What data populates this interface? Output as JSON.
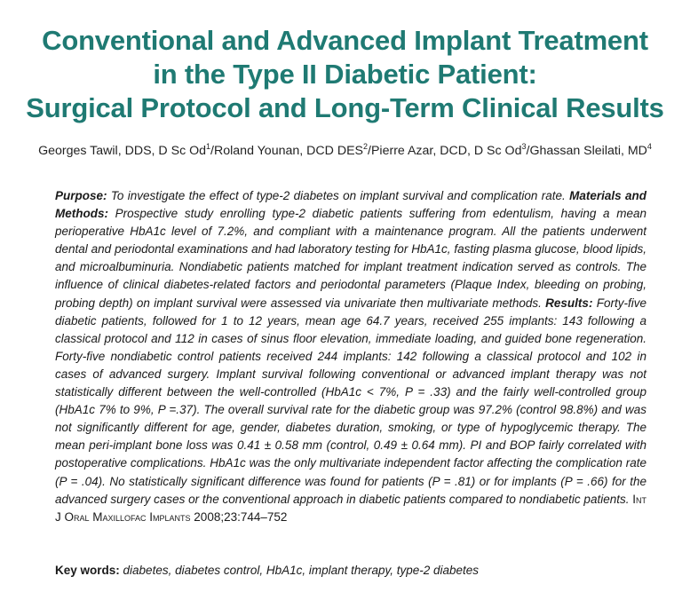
{
  "title": {
    "line1": "Conventional and Advanced Implant Treatment",
    "line2": "in the Type II Diabetic Patient:",
    "line3": "Surgical Protocol and Long-Term Clinical Results"
  },
  "authors": [
    {
      "name": "Georges Tawil, DDS, D Sc Od",
      "sup": "1",
      "sep": "/"
    },
    {
      "name": "Roland Younan, DCD DES",
      "sup": "2",
      "sep": "/"
    },
    {
      "name": "Pierre Azar, DCD, D Sc Od",
      "sup": "3",
      "sep": "/"
    },
    {
      "name": "Ghassan Sleilati, MD",
      "sup": "4",
      "sep": ""
    }
  ],
  "abstract": {
    "purpose_head": "Purpose:",
    "purpose_text": " To investigate the effect of type-2 diabetes on implant survival and complication rate. ",
    "methods_head": "Materials and Methods:",
    "methods_text": " Prospective study enrolling type-2 diabetic patients suffering from edentulism, having a mean perioperative HbA1c level of 7.2%, and compliant with a maintenance program. All the patients underwent dental and periodontal examinations and had laboratory testing for HbA1c, fasting plasma glucose, blood lipids, and microalbuminuria. Nondiabetic patients matched for implant treatment indication served as controls. The influence of clinical diabetes-related factors and periodontal parameters (Plaque Index, bleeding on probing, probing depth) on implant survival were assessed via univariate then multivariate methods. ",
    "results_head": "Results:",
    "results_text": " Forty-five diabetic patients, followed for 1 to 12 years, mean age 64.7 years, received 255 implants: 143 following a classical protocol and 112 in cases of sinus floor elevation, immediate loading, and guided bone regeneration. Forty-five nondiabetic control patients received 244 implants: 142 following a classical protocol and 102 in cases of advanced surgery. Implant survival following conventional or advanced implant therapy was not statistically different between the well-controlled (HbA1c < 7%, P = .33) and the fairly well-controlled group (HbA1c 7% to 9%, P =.37). The overall survival rate for the diabetic group was 97.2% (control 98.8%) and was not significantly different for age, gender, diabetes duration, smoking, or type of hypoglycemic therapy. The mean peri-implant bone loss was 0.41 ± 0.58 mm (control, 0.49 ± 0.64 mm). PI and BOP fairly correlated with postoperative complications. HbA1c was the only multivariate independent factor affecting the complication rate (P = .04). No statistically significant difference was found for patients (P = .81) or for implants (P = .66) for the advanced surgery cases or the conventional approach in diabetic patients compared to nondiabetic patients. ",
    "journal": "Int J Oral Maxillofac Implants",
    "citation": " 2008;23:744–752"
  },
  "keywords": {
    "head": "Key words:",
    "text": " diabetes, diabetes control, HbA1c, implant therapy, type-2 diabetes"
  },
  "colors": {
    "title": "#1f7a73",
    "text": "#1a1a1a"
  }
}
